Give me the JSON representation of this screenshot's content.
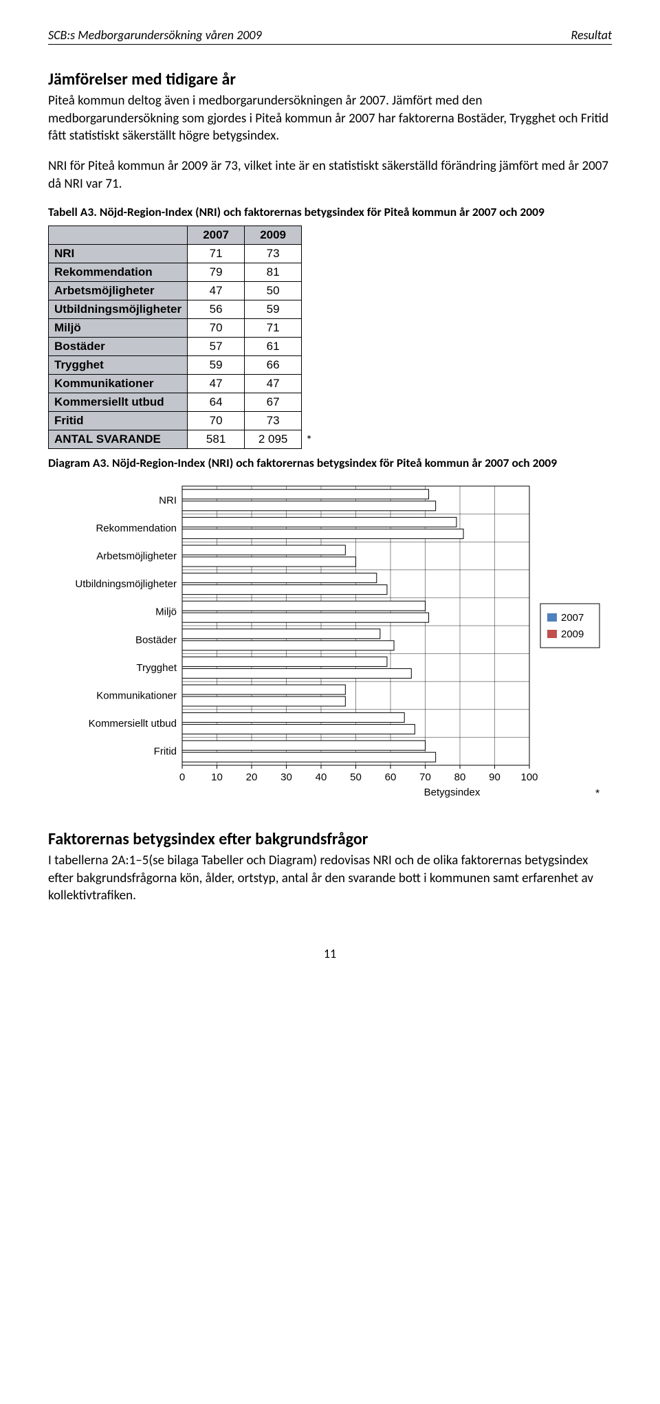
{
  "header": {
    "left": "SCB:s Medborgarundersökning våren 2009",
    "right": "Resultat"
  },
  "section": {
    "title": "Jämförelser med tidigare år",
    "para1": "Piteå kommun deltog även i medborgarundersökningen år 2007. Jämfört med den medborgarundersökning som gjordes i Piteå kommun år 2007 har faktorerna Bostäder, Trygghet och Fritid fått statistiskt säkerställt högre betygsindex.",
    "para2": "NRI för Piteå kommun år 2009 är 73, vilket inte är en statistiskt säkerställd förändring jämfört med år 2007 då NRI var 71."
  },
  "table_caption": "Tabell A3. Nöjd-Region-Index (NRI) och faktorernas betygsindex för Piteå kommun år 2007 och 2009",
  "chart_caption": "Diagram A3. Nöjd-Region-Index (NRI) och faktorernas betygsindex för Piteå kommun år 2007 och 2009",
  "table": {
    "head_blank": "",
    "col1": "2007",
    "col2": "2009",
    "rows": [
      {
        "label": "NRI",
        "a": "71",
        "b": "73"
      },
      {
        "label": "Rekommendation",
        "a": "79",
        "b": "81"
      },
      {
        "label": "Arbetsmöjligheter",
        "a": "47",
        "b": "50"
      },
      {
        "label": "Utbildningsmöjligheter",
        "a": "56",
        "b": "59"
      },
      {
        "label": "Miljö",
        "a": "70",
        "b": "71"
      },
      {
        "label": "Bostäder",
        "a": "57",
        "b": "61"
      },
      {
        "label": "Trygghet",
        "a": "59",
        "b": "66"
      },
      {
        "label": "Kommunikationer",
        "a": "47",
        "b": "47"
      },
      {
        "label": "Kommersiellt utbud",
        "a": "64",
        "b": "67"
      },
      {
        "label": "Fritid",
        "a": "70",
        "b": "73"
      },
      {
        "label": "ANTAL SVARANDE",
        "a": "581",
        "b": "2 095"
      }
    ],
    "asterisk": "*"
  },
  "chart": {
    "type": "grouped-horizontal-bar",
    "categories": [
      "NRI",
      "Rekommendation",
      "Arbetsmöjligheter",
      "Utbildningsmöjligheter",
      "Miljö",
      "Bostäder",
      "Trygghet",
      "Kommunikationer",
      "Kommersiellt utbud",
      "Fritid"
    ],
    "series": [
      {
        "name": "2007",
        "color": "#ffffff",
        "stroke": "#000000",
        "values": [
          71,
          79,
          47,
          56,
          70,
          57,
          59,
          47,
          64,
          70
        ]
      },
      {
        "name": "2009",
        "color": "#ffffff",
        "stroke": "#000000",
        "values": [
          73,
          81,
          50,
          59,
          71,
          61,
          66,
          47,
          67,
          73
        ]
      }
    ],
    "xlim": [
      0,
      100
    ],
    "xtick_step": 10,
    "xlabel": "Betygsindex",
    "legend_box_fill": "#ffffff",
    "background": "#ffffff",
    "axis_color": "#000000",
    "label_fontsize": 15,
    "tick_fontsize": 15,
    "asterisk": "*",
    "legend_series1_fill": "#4f81bd",
    "legend_series2_fill": "#c0504d"
  },
  "bottom": {
    "title": "Faktorernas betygsindex efter bakgrundsfrågor",
    "para": "I tabellerna 2A:1–5(se bilaga Tabeller och Diagram) redovisas NRI och de olika faktorernas betygsindex efter bakgrundsfrågorna kön, ålder, ortstyp, antal år den svarande bott i kommunen samt erfarenhet av kollektivtrafiken."
  },
  "page_number": "11"
}
